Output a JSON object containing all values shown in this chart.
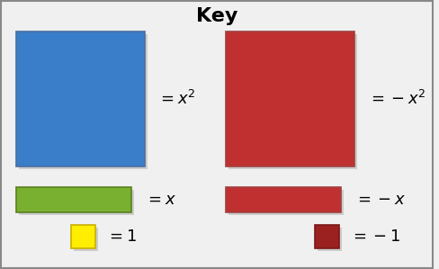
{
  "title": "Key",
  "title_fontsize": 16,
  "bg_color": "#f0f0f0",
  "border_color": "#888888",
  "blue_square_color": "#3a7dc9",
  "blue_square_border": "#4a6fa0",
  "red_square_color": "#c03030",
  "red_square_border": "#a04040",
  "green_rect_color": "#7ab030",
  "green_rect_border": "#5a8020",
  "red_rect_color": "#c03030",
  "red_rect_border": "#a04040",
  "yellow_small_color": "#ffee00",
  "yellow_small_border": "#c8b000",
  "dark_red_small_color": "#9b2020",
  "dark_red_small_border": "#7a1818",
  "label_fontsize": 13
}
